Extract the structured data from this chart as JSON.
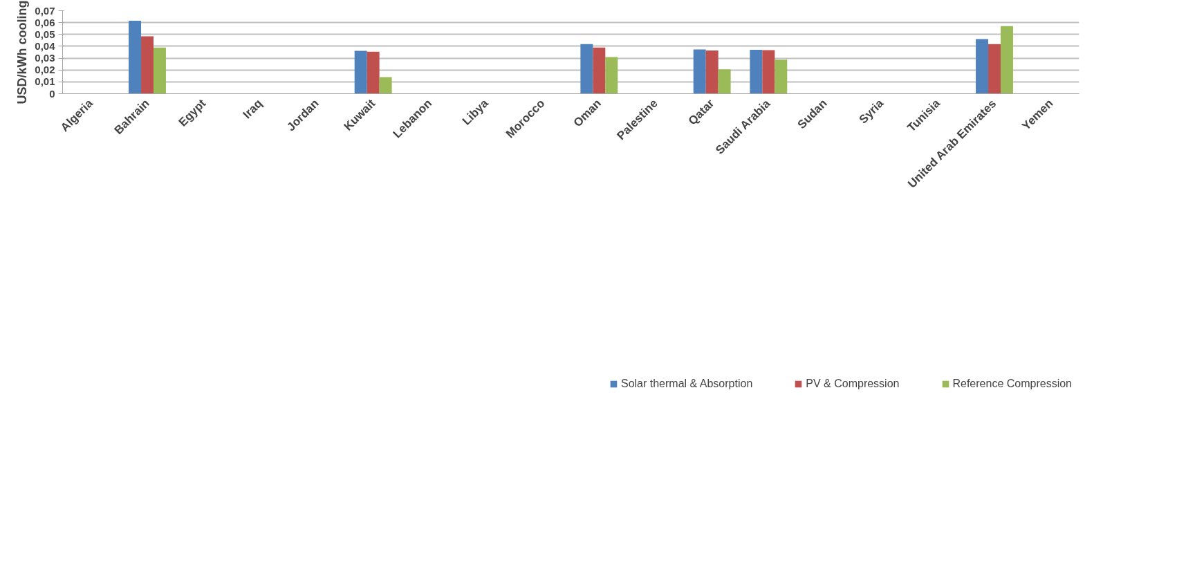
{
  "chart_data": {
    "type": "bar",
    "ylabel": "USD/kWh cooling",
    "categories": [
      "Algeria",
      "Bahrain",
      "Egypt",
      "Iraq",
      "Jordan",
      "Kuwait",
      "Lebanon",
      "Libya",
      "Morocco",
      "Oman",
      "Palestine",
      "Qatar",
      "Saudi Arabia",
      "Sudan",
      "Syria",
      "Tunisia",
      "United Arab Emirates",
      "Yemen"
    ],
    "series": [
      {
        "name": "Solar thermal & Absorption",
        "color": "#4f81bd",
        "values": [
          null,
          0.0615,
          null,
          null,
          null,
          0.0361,
          null,
          null,
          null,
          0.0419,
          null,
          0.0374,
          0.037,
          null,
          null,
          null,
          0.0461,
          null
        ]
      },
      {
        "name": "PV & Compression",
        "color": "#c0504d",
        "values": [
          null,
          0.0484,
          null,
          null,
          null,
          0.0354,
          null,
          null,
          null,
          0.0389,
          null,
          0.0364,
          0.0367,
          null,
          null,
          null,
          0.0419,
          null
        ]
      },
      {
        "name": "Reference Compression",
        "color": "#9bbb59",
        "values": [
          null,
          0.0389,
          null,
          null,
          null,
          0.014,
          null,
          null,
          null,
          0.0309,
          null,
          0.0206,
          0.0288,
          null,
          null,
          null,
          0.057,
          null
        ]
      }
    ],
    "ylim": [
      0,
      0.07
    ],
    "yticks": [
      {
        "value": 0,
        "label": "0"
      },
      {
        "value": 0.01,
        "label": "0,01"
      },
      {
        "value": 0.02,
        "label": "0,02"
      },
      {
        "value": 0.03,
        "label": "0,03"
      },
      {
        "value": 0.04,
        "label": "0,04"
      },
      {
        "value": 0.05,
        "label": "0,05"
      },
      {
        "value": 0.06,
        "label": "0,06"
      },
      {
        "value": 0.07,
        "label": "0,07"
      }
    ],
    "grid": "y",
    "legend": "bottom"
  }
}
